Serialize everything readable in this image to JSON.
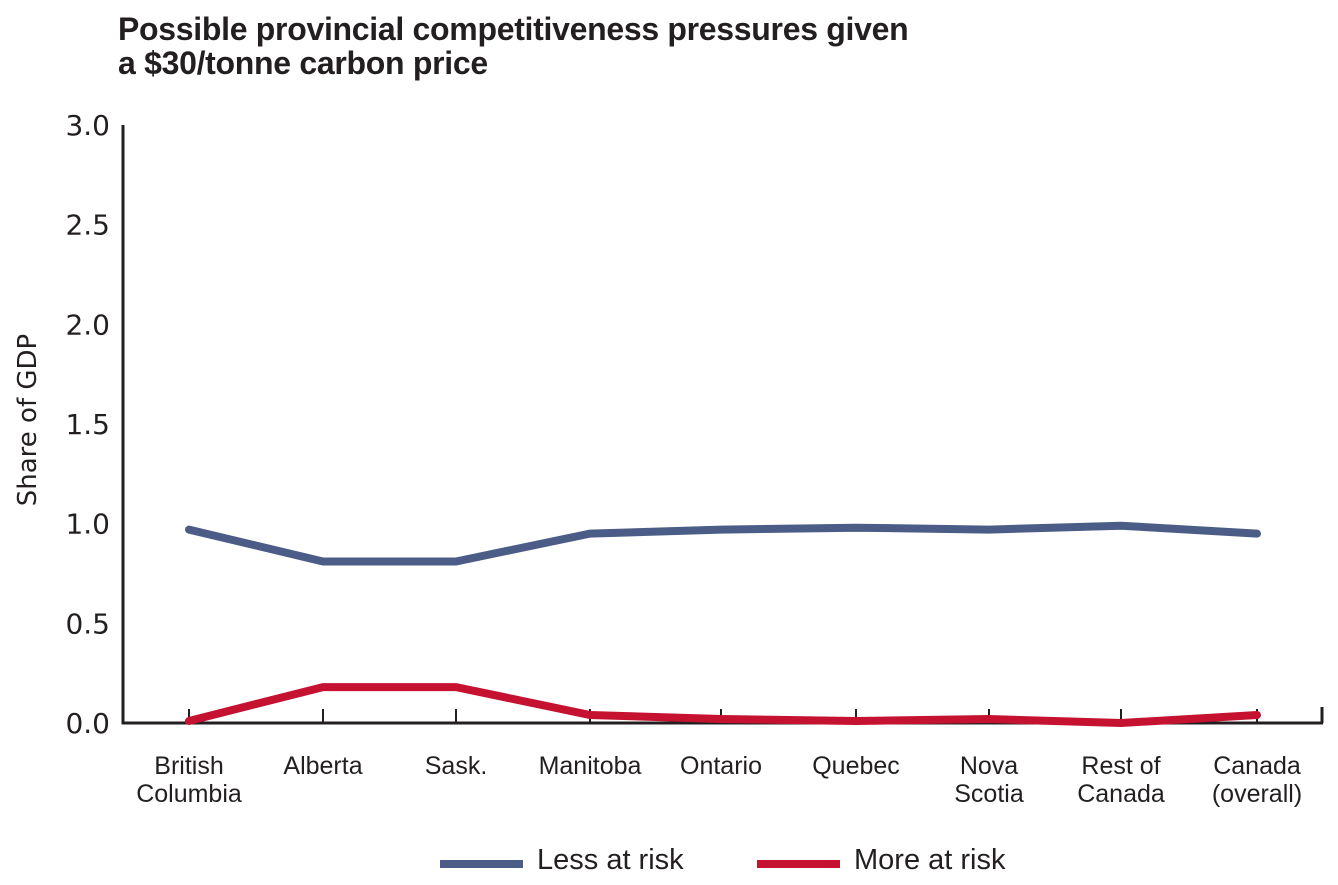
{
  "chart_data": {
    "type": "line",
    "title_lines": [
      "Possible provincial competitiveness pressures given",
      "a $30/tonne carbon price"
    ],
    "xlabel": "",
    "ylabel": "Share of GDP",
    "ylim": [
      0,
      3.0
    ],
    "yticks": [
      "0.0",
      "0.5",
      "1.0",
      "1.5",
      "2.0",
      "2.5",
      "3.0"
    ],
    "ytick_values": [
      0,
      0.5,
      1.0,
      1.5,
      2.0,
      2.5,
      3.0
    ],
    "grid": false,
    "legend_position": "bottom",
    "categories": [
      [
        "British",
        "Columbia"
      ],
      [
        "Alberta"
      ],
      [
        "Sask."
      ],
      [
        "Manitoba"
      ],
      [
        "Ontario"
      ],
      [
        "Quebec"
      ],
      [
        "Nova",
        "Scotia"
      ],
      [
        "Rest of",
        "Canada"
      ],
      [
        "Canada",
        "(overall)"
      ]
    ],
    "series": [
      {
        "name": "Less at risk",
        "color": "#4b5d87",
        "values": [
          0.97,
          0.81,
          0.81,
          0.95,
          0.97,
          0.98,
          0.97,
          0.99,
          0.95
        ]
      },
      {
        "name": "More at risk",
        "color": "#c41230",
        "values": [
          0.01,
          0.18,
          0.18,
          0.04,
          0.02,
          0.01,
          0.02,
          0.0,
          0.04
        ]
      }
    ]
  }
}
